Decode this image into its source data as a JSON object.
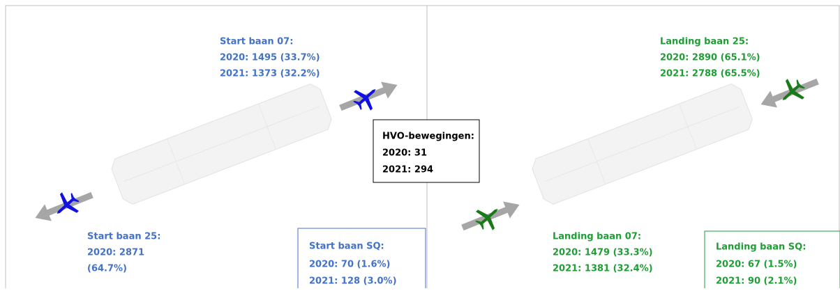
{
  "left": {
    "top": {
      "title": "Start baan 07:",
      "lines": [
        "2020: 1495 (33.7%)",
        "2021: 1373 (32.2%)"
      ]
    },
    "bottom": {
      "title": "Start baan 25:",
      "lines": [
        "2020: 2871",
        "(64.7%)"
      ]
    },
    "box": {
      "title": "Start baan SQ:",
      "lines": [
        "2020: 70 (1.6%)",
        "2021: 128 (3.0%)"
      ]
    }
  },
  "center": {
    "title": "HVO-bewegingen:",
    "lines": [
      "2020: 31",
      "2021: 294"
    ]
  },
  "right": {
    "top": {
      "title": "Landing baan 25:",
      "lines": [
        "2020: 2890 (65.1%)",
        "2021: 2788 (65.5%)"
      ]
    },
    "bottom": {
      "title": "Landing baan 07:",
      "lines": [
        "2020: 1479 (33.3%)",
        "2021: 1381 (32.4%)"
      ]
    },
    "box": {
      "title": "Landing baan SQ:",
      "lines": [
        "2020: 67 (1.5%)",
        "2021: 90 (2.1%)"
      ]
    }
  }
}
